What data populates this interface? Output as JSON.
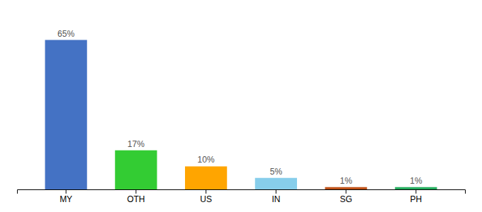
{
  "chart_data": {
    "type": "bar",
    "categories": [
      "MY",
      "OTH",
      "US",
      "IN",
      "SG",
      "PH"
    ],
    "values": [
      65,
      17,
      10,
      5,
      1,
      1
    ],
    "value_labels": [
      "65%",
      "17%",
      "10%",
      "5%",
      "1%",
      "1%"
    ],
    "colors": [
      "#4472C4",
      "#33CC33",
      "#FFA500",
      "#87CEEB",
      "#C0531A",
      "#27AE60"
    ],
    "ylim": [
      0,
      75
    ],
    "data_labels": true,
    "tick_labels": "x",
    "grid": false
  }
}
